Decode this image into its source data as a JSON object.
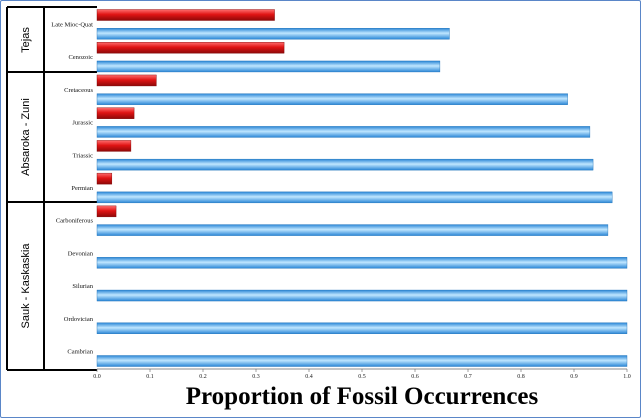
{
  "colors": {
    "series_red": "#e01414",
    "series_blue": "#2f9ee6",
    "frame_border": "#5a86c8"
  },
  "chart_data": {
    "type": "bar",
    "orientation": "horizontal",
    "title": "",
    "xlabel": "Proportion of Fossil Occurrences",
    "ylabel": "",
    "xlim": [
      0,
      1.0
    ],
    "xticks": [
      "0.0",
      "0.1",
      "0.2",
      "0.3",
      "0.4",
      "0.5",
      "0.6",
      "0.7",
      "0.8",
      "0.9",
      "1.0"
    ],
    "grid": false,
    "legend": "none",
    "categories": [
      "Late Mioc-Quat",
      "Cenozoic",
      "Cretaceous",
      "Jurassic",
      "Triassic",
      "Permian",
      "Carboniferous",
      "Devonian",
      "Silurian",
      "Ordovician",
      "Cambrian"
    ],
    "series": [
      {
        "color": "#e01414",
        "values": [
          0.335,
          0.353,
          0.112,
          0.07,
          0.064,
          0.028,
          0.036,
          0,
          0,
          0,
          0
        ]
      },
      {
        "color": "#2f9ee6",
        "values": [
          0.665,
          0.647,
          0.888,
          0.93,
          0.936,
          0.972,
          0.964,
          1.0,
          1.0,
          1.0,
          1.0
        ]
      }
    ],
    "groups": [
      {
        "label": "Tejas",
        "categories": [
          "Late Mioc-Quat",
          "Cenozoic"
        ]
      },
      {
        "label": "Absaroka - Zuni",
        "categories": [
          "Cretaceous",
          "Jurassic",
          "Triassic",
          "Permian"
        ]
      },
      {
        "label": "Sauk - Kaskaskia",
        "categories": [
          "Carboniferous",
          "Devonian",
          "Silurian",
          "Ordovician",
          "Cambrian"
        ]
      }
    ]
  }
}
